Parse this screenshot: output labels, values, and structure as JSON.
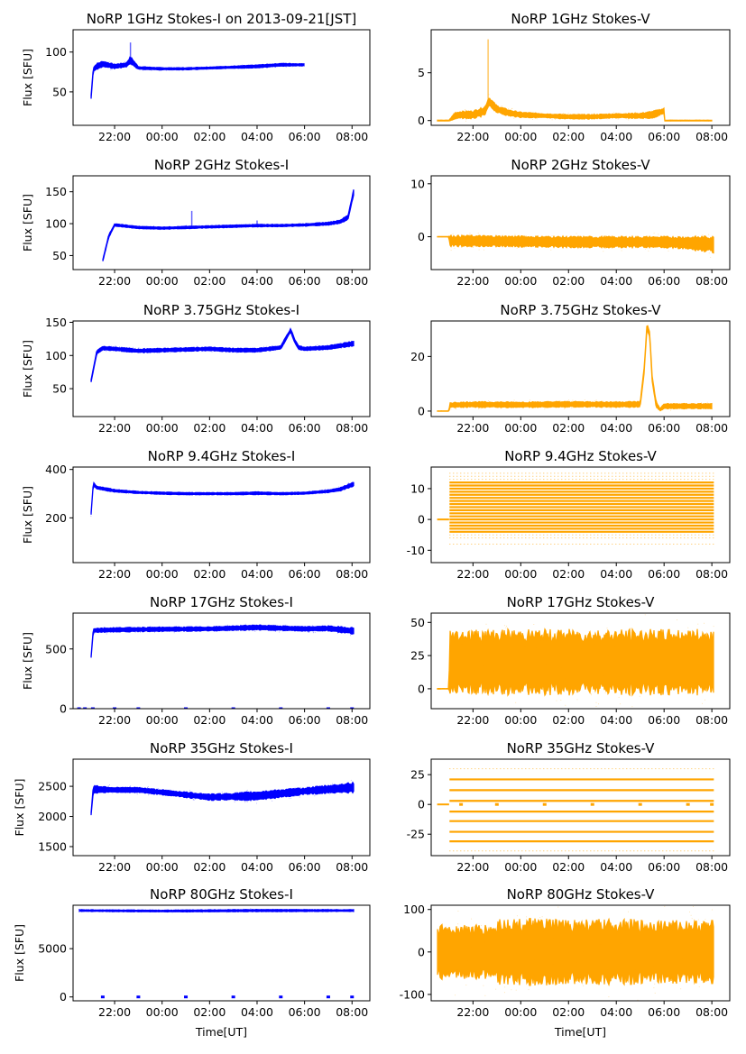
{
  "figure": {
    "xlabel": "Time[UT]",
    "ylabel": "Flux [SFU]"
  },
  "colors": {
    "stokes_i": "#0000ff",
    "stokes_v": "#ffa500",
    "axis": "#000000",
    "background": "#ffffff"
  },
  "chart_data": [
    {
      "type": "scatter",
      "title": "NoRP 1GHz Stokes-I on 2013-09-21[JST]",
      "ylabel": "Flux [SFU]",
      "xlabel": "",
      "color": "#0000ff",
      "xlim": [
        "20:15",
        "08:45"
      ],
      "ylim": [
        8,
        128
      ],
      "yticks": [
        50,
        100
      ],
      "xticks": [
        "22:00",
        "00:00",
        "02:00",
        "04:00",
        "06:00",
        "08:00"
      ],
      "x": [
        "21:00",
        "21:06",
        "21:15",
        "21:30",
        "22:00",
        "22:30",
        "22:40",
        "23:00",
        "00:00",
        "01:00",
        "02:00",
        "03:00",
        "04:00",
        "05:00",
        "06:00"
      ],
      "y": [
        40,
        78,
        82,
        85,
        82,
        84,
        90,
        80,
        79,
        79,
        80,
        81,
        82,
        84,
        84
      ],
      "band_width": [
        6,
        6,
        8,
        8,
        6,
        6,
        10,
        4,
        3,
        3,
        3,
        3,
        4,
        4,
        3
      ],
      "notes": {
        "data_start": "21:00",
        "data_end": "06:00",
        "spike": {
          "x": "22:40",
          "y_max": 112
        }
      }
    },
    {
      "type": "scatter",
      "title": "NoRP 1GHz Stokes-V",
      "ylabel": "",
      "xlabel": "",
      "color": "#ffa500",
      "xlim": [
        "20:15",
        "08:45"
      ],
      "ylim": [
        -0.5,
        9.5
      ],
      "yticks": [
        0,
        5
      ],
      "xticks": [
        "22:00",
        "00:00",
        "02:00",
        "04:00",
        "06:00",
        "08:00"
      ],
      "x": [
        "20:30",
        "21:00",
        "21:15",
        "21:30",
        "22:00",
        "22:30",
        "22:40",
        "23:00",
        "23:30",
        "00:00",
        "01:00",
        "02:00",
        "03:00",
        "04:00",
        "05:00",
        "05:30",
        "06:00",
        "06:01",
        "08:00"
      ],
      "y": [
        0,
        0,
        0.5,
        0.6,
        0.6,
        1.0,
        2.0,
        1.2,
        0.8,
        0.6,
        0.5,
        0.4,
        0.4,
        0.5,
        0.5,
        0.6,
        1.0,
        0,
        0
      ],
      "band_width": [
        0.1,
        0.1,
        0.8,
        0.8,
        0.9,
        1.0,
        1.0,
        0.8,
        0.7,
        0.6,
        0.5,
        0.5,
        0.5,
        0.5,
        0.6,
        0.8,
        0.6,
        0.1,
        0.1
      ],
      "notes": {
        "spike": {
          "x": "22:38",
          "y_max": 8.5
        }
      }
    },
    {
      "type": "scatter",
      "title": "NoRP 2GHz Stokes-I",
      "ylabel": "Flux [SFU]",
      "xlabel": "",
      "color": "#0000ff",
      "xlim": [
        "20:15",
        "08:45"
      ],
      "ylim": [
        28,
        175
      ],
      "yticks": [
        50,
        100,
        150
      ],
      "xticks": [
        "22:00",
        "00:00",
        "02:00",
        "04:00",
        "06:00",
        "08:00"
      ],
      "x": [
        "21:30",
        "21:45",
        "22:00",
        "22:30",
        "23:00",
        "00:00",
        "01:00",
        "02:00",
        "03:00",
        "04:00",
        "05:00",
        "06:00",
        "07:00",
        "07:30",
        "07:50",
        "08:05"
      ],
      "y": [
        42,
        80,
        98,
        96,
        94,
        93,
        94,
        95,
        96,
        97,
        97,
        98,
        100,
        103,
        110,
        152
      ],
      "band_width": [
        4,
        5,
        4,
        4,
        4,
        4,
        4,
        4,
        4,
        4,
        4,
        4,
        5,
        6,
        8,
        10
      ],
      "notes": {
        "spikes": [
          {
            "x": "01:15",
            "y_max": 120
          },
          {
            "x": "04:00",
            "y_max": 105
          }
        ]
      }
    },
    {
      "type": "scatter",
      "title": "NoRP 2GHz Stokes-V",
      "ylabel": "",
      "xlabel": "",
      "color": "#ffa500",
      "xlim": [
        "20:15",
        "08:45"
      ],
      "ylim": [
        -6.2,
        11.5
      ],
      "yticks": [
        0,
        10
      ],
      "xticks": [
        "22:00",
        "00:00",
        "02:00",
        "04:00",
        "06:00",
        "08:00"
      ],
      "x": [
        "20:30",
        "21:00",
        "21:01",
        "22:00",
        "00:00",
        "02:00",
        "04:00",
        "06:00",
        "07:00",
        "08:00",
        "08:05"
      ],
      "y": [
        0,
        0,
        -0.8,
        -0.8,
        -0.9,
        -1.0,
        -1.0,
        -1.0,
        -1.2,
        -1.4,
        -1.6
      ],
      "band_width": [
        0.1,
        0.1,
        2.2,
        2.2,
        2.2,
        2.2,
        2.2,
        2.2,
        2.6,
        3.2,
        3.4
      ]
    },
    {
      "type": "scatter",
      "title": "NoRP 3.75GHz Stokes-I",
      "ylabel": "Flux [SFU]",
      "xlabel": "",
      "color": "#0000ff",
      "xlim": [
        "20:15",
        "08:45"
      ],
      "ylim": [
        8,
        152
      ],
      "yticks": [
        50,
        100,
        150
      ],
      "xticks": [
        "22:00",
        "00:00",
        "02:00",
        "04:00",
        "06:00",
        "08:00"
      ],
      "x": [
        "21:00",
        "21:15",
        "21:30",
        "22:00",
        "23:00",
        "00:00",
        "01:00",
        "02:00",
        "03:00",
        "04:00",
        "05:00",
        "05:15",
        "05:25",
        "05:35",
        "05:45",
        "06:00",
        "07:00",
        "08:05"
      ],
      "y": [
        60,
        105,
        111,
        110,
        107,
        108,
        109,
        110,
        108,
        108,
        112,
        128,
        138,
        122,
        112,
        110,
        112,
        118
      ],
      "band_width": [
        4,
        6,
        6,
        6,
        6,
        6,
        6,
        6,
        6,
        6,
        6,
        6,
        6,
        6,
        6,
        6,
        6,
        8
      ]
    },
    {
      "type": "scatter",
      "title": "NoRP 3.75GHz Stokes-V",
      "ylabel": "",
      "xlabel": "",
      "color": "#ffa500",
      "xlim": [
        "20:15",
        "08:45"
      ],
      "ylim": [
        -2,
        33
      ],
      "yticks": [
        0,
        20
      ],
      "xticks": [
        "22:00",
        "00:00",
        "02:00",
        "04:00",
        "06:00",
        "08:00"
      ],
      "x": [
        "20:30",
        "21:00",
        "21:01",
        "22:00",
        "00:00",
        "02:00",
        "04:00",
        "05:00",
        "05:10",
        "05:17",
        "05:24",
        "05:30",
        "05:40",
        "05:50",
        "06:00",
        "07:00",
        "08:00"
      ],
      "y": [
        0,
        0,
        2.2,
        2.4,
        2.3,
        2.5,
        2.4,
        2.5,
        15,
        31,
        28,
        12,
        2.5,
        0.5,
        1.8,
        1.8,
        1.8
      ],
      "band_width": [
        0.2,
        0.2,
        2.0,
        2.2,
        2.2,
        2.2,
        2.2,
        2.2,
        2.5,
        2.5,
        2.5,
        2.5,
        2.2,
        1.0,
        2.0,
        2.0,
        2.0
      ]
    },
    {
      "type": "scatter",
      "title": "NoRP 9.4GHz Stokes-I",
      "ylabel": "Flux [SFU]",
      "xlabel": "",
      "color": "#0000ff",
      "xlim": [
        "20:15",
        "08:45"
      ],
      "ylim": [
        15,
        410
      ],
      "yticks": [
        200,
        400
      ],
      "xticks": [
        "22:00",
        "00:00",
        "02:00",
        "04:00",
        "06:00",
        "08:00"
      ],
      "x": [
        "21:00",
        "21:06",
        "21:15",
        "22:00",
        "23:00",
        "00:00",
        "01:00",
        "02:00",
        "03:00",
        "04:00",
        "05:00",
        "06:00",
        "07:00",
        "07:30",
        "08:05"
      ],
      "y": [
        205,
        340,
        325,
        312,
        305,
        302,
        300,
        300,
        300,
        302,
        300,
        302,
        310,
        318,
        340
      ],
      "band_width": [
        10,
        16,
        14,
        12,
        10,
        10,
        10,
        10,
        10,
        12,
        10,
        10,
        12,
        14,
        20
      ]
    },
    {
      "type": "scatter",
      "title": "NoRP 9.4GHz Stokes-V",
      "ylabel": "",
      "xlabel": "",
      "color": "#ffa500",
      "xlim": [
        "20:15",
        "08:45"
      ],
      "ylim": [
        -14,
        17
      ],
      "yticks": [
        -10,
        0,
        10
      ],
      "xticks": [
        "22:00",
        "00:00",
        "02:00",
        "04:00",
        "06:00",
        "08:00"
      ],
      "x": [
        "20:30",
        "21:00",
        "21:01",
        "08:05"
      ],
      "y": [
        0,
        0,
        0,
        0
      ],
      "levels": [
        -4,
        -3,
        -2,
        -1,
        0,
        1,
        2,
        3,
        4,
        5,
        6,
        7,
        8,
        9,
        10,
        11,
        12
      ],
      "sparse_levels": [
        -8,
        -6,
        -5,
        13,
        14,
        15
      ]
    },
    {
      "type": "scatter",
      "title": "NoRP 17GHz Stokes-I",
      "ylabel": "Flux [SFU]",
      "xlabel": "",
      "color": "#0000ff",
      "xlim": [
        "20:15",
        "08:45"
      ],
      "ylim": [
        0,
        800
      ],
      "yticks": [
        0,
        500
      ],
      "xticks": [
        "22:00",
        "00:00",
        "02:00",
        "04:00",
        "06:00",
        "08:00"
      ],
      "x": [
        "21:00",
        "21:06",
        "22:00",
        "00:00",
        "02:00",
        "04:00",
        "06:00",
        "07:00",
        "08:05"
      ],
      "y": [
        410,
        655,
        660,
        665,
        668,
        680,
        668,
        672,
        650
      ],
      "band_width": [
        15,
        40,
        40,
        38,
        38,
        45,
        40,
        45,
        60
      ],
      "zero_dots": [
        "20:30",
        "20:45",
        "21:05",
        "22:00",
        "23:00",
        "01:00",
        "03:00",
        "05:00",
        "07:00",
        "08:00"
      ]
    },
    {
      "type": "scatter",
      "title": "NoRP 17GHz Stokes-V",
      "ylabel": "",
      "xlabel": "",
      "color": "#ffa500",
      "xlim": [
        "20:15",
        "08:45"
      ],
      "ylim": [
        -15,
        57
      ],
      "yticks": [
        0,
        25,
        50
      ],
      "xticks": [
        "22:00",
        "00:00",
        "02:00",
        "04:00",
        "06:00",
        "08:00"
      ],
      "x": [
        "20:30",
        "21:00",
        "21:01",
        "08:05"
      ],
      "y": [
        0,
        0,
        20,
        20
      ],
      "band_width": [
        0.5,
        0.5,
        50,
        50
      ]
    },
    {
      "type": "scatter",
      "title": "NoRP 35GHz Stokes-I",
      "ylabel": "Flux [SFU]",
      "xlabel": "",
      "color": "#0000ff",
      "xlim": [
        "20:15",
        "08:45"
      ],
      "ylim": [
        1350,
        2950
      ],
      "yticks": [
        1500,
        2000,
        2500
      ],
      "xticks": [
        "22:00",
        "00:00",
        "02:00",
        "04:00",
        "06:00",
        "08:00"
      ],
      "x": [
        "21:00",
        "21:06",
        "22:00",
        "23:00",
        "00:00",
        "01:00",
        "02:00",
        "03:00",
        "04:00",
        "05:00",
        "06:00",
        "07:00",
        "08:05"
      ],
      "y": [
        2000,
        2450,
        2440,
        2440,
        2400,
        2360,
        2320,
        2330,
        2340,
        2380,
        2420,
        2450,
        2480
      ],
      "band_width": [
        40,
        140,
        90,
        90,
        90,
        100,
        110,
        120,
        160,
        140,
        120,
        140,
        180
      ]
    },
    {
      "type": "scatter",
      "title": "NoRP 35GHz Stokes-V",
      "ylabel": "",
      "xlabel": "",
      "color": "#ffa500",
      "xlim": [
        "20:15",
        "08:45"
      ],
      "ylim": [
        -43,
        38
      ],
      "yticks": [
        -25,
        0,
        25
      ],
      "xticks": [
        "22:00",
        "00:00",
        "02:00",
        "04:00",
        "06:00",
        "08:00"
      ],
      "x": [
        "20:30",
        "21:00",
        "21:01",
        "08:05"
      ],
      "y": [
        0,
        0,
        0,
        0
      ],
      "levels": [
        -31,
        -23,
        -14,
        -6,
        3,
        12,
        21
      ],
      "sparse_levels": [
        30,
        -39
      ],
      "zero_dots": [
        "21:30",
        "23:00",
        "01:00",
        "03:00",
        "05:00",
        "07:00",
        "08:00"
      ]
    },
    {
      "type": "scatter",
      "title": "NoRP 80GHz Stokes-I",
      "ylabel": "Flux [SFU]",
      "xlabel": "Time[UT]",
      "color": "#0000ff",
      "xlim": [
        "20:15",
        "08:45"
      ],
      "ylim": [
        -400,
        9500
      ],
      "yticks": [
        0,
        5000
      ],
      "xticks": [
        "22:00",
        "00:00",
        "02:00",
        "04:00",
        "06:00",
        "08:00"
      ],
      "x": [
        "20:30",
        "00:00",
        "04:00",
        "08:05"
      ],
      "y": [
        8950,
        8900,
        8950,
        8950
      ],
      "band_width": [
        200,
        200,
        250,
        200
      ],
      "zero_dots": [
        "21:30",
        "23:00",
        "01:00",
        "03:00",
        "05:00",
        "07:00",
        "08:00"
      ]
    },
    {
      "type": "scatter",
      "title": "NoRP 80GHz Stokes-V",
      "ylabel": "",
      "xlabel": "Time[UT]",
      "color": "#ffa500",
      "xlim": [
        "20:15",
        "08:45"
      ],
      "ylim": [
        -115,
        110
      ],
      "yticks": [
        -100,
        0,
        100
      ],
      "xticks": [
        "22:00",
        "00:00",
        "02:00",
        "04:00",
        "06:00",
        "08:00"
      ],
      "x": [
        "20:30",
        "23:00",
        "23:01",
        "08:05"
      ],
      "y": [
        0,
        0,
        0,
        0
      ],
      "band_width": [
        130,
        130,
        160,
        150
      ]
    }
  ]
}
